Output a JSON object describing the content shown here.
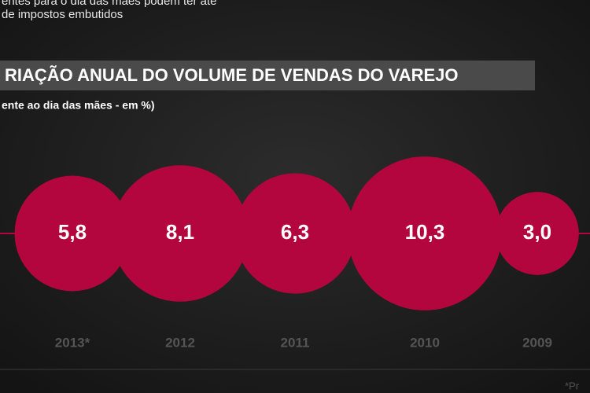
{
  "chart_data": {
    "type": "bubble",
    "title": "RIAÇÃO ANUAL DO VOLUME DE VENDAS DO VAREJO",
    "subtitle": "ente ao dia das mães - em %)",
    "annotations": [
      "entes para o dia das mães podem ter até",
      "de impostos embutidos",
      "*Pr"
    ],
    "categories": [
      "2013*",
      "2012",
      "2011",
      "2010",
      "2009"
    ],
    "values": [
      5.8,
      8.1,
      6.3,
      10.3,
      3.0
    ],
    "value_labels": [
      "5,8",
      "8,1",
      "6,3",
      "10,3",
      "3,0"
    ],
    "color": "#b3063f"
  }
}
